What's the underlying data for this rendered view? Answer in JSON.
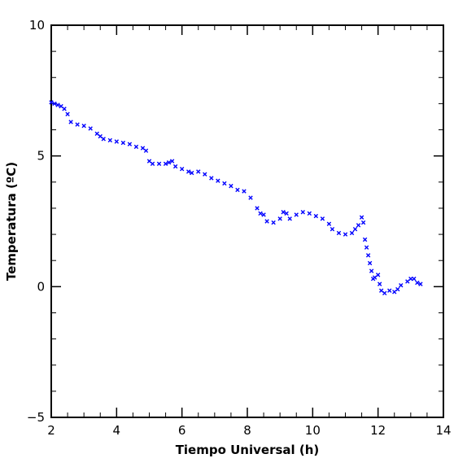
{
  "chart_data": {
    "type": "scatter",
    "xlabel": "Tiempo Universal (h)",
    "ylabel": "Temperatura (ºC)",
    "xlim": [
      2,
      14
    ],
    "ylim": [
      -5,
      10
    ],
    "x_ticks": [
      2,
      4,
      6,
      8,
      10,
      12,
      14
    ],
    "x_tick_labels": [
      "2",
      "4",
      "6",
      "8",
      "10",
      "12",
      "14"
    ],
    "y_ticks": [
      -5,
      0,
      5,
      10
    ],
    "y_tick_labels": [
      "−5",
      "0",
      "5",
      "10"
    ],
    "marker": "x",
    "colors": {
      "series": "#0000ff",
      "axes": "#000000"
    },
    "grid": false,
    "legend": "none",
    "series": [
      {
        "points": [
          [
            2.0,
            7.05
          ],
          [
            2.1,
            7.0
          ],
          [
            2.2,
            6.95
          ],
          [
            2.3,
            6.9
          ],
          [
            2.4,
            6.8
          ],
          [
            2.5,
            6.6
          ],
          [
            2.6,
            6.3
          ],
          [
            2.8,
            6.2
          ],
          [
            3.0,
            6.15
          ],
          [
            3.2,
            6.05
          ],
          [
            3.4,
            5.85
          ],
          [
            3.5,
            5.75
          ],
          [
            3.6,
            5.65
          ],
          [
            3.8,
            5.6
          ],
          [
            4.0,
            5.55
          ],
          [
            4.2,
            5.5
          ],
          [
            4.4,
            5.45
          ],
          [
            4.6,
            5.35
          ],
          [
            4.8,
            5.3
          ],
          [
            4.9,
            5.2
          ],
          [
            5.0,
            4.8
          ],
          [
            5.1,
            4.7
          ],
          [
            5.3,
            4.7
          ],
          [
            5.5,
            4.7
          ],
          [
            5.6,
            4.75
          ],
          [
            5.7,
            4.8
          ],
          [
            5.8,
            4.6
          ],
          [
            6.0,
            4.5
          ],
          [
            6.2,
            4.4
          ],
          [
            6.3,
            4.35
          ],
          [
            6.5,
            4.4
          ],
          [
            6.7,
            4.3
          ],
          [
            6.9,
            4.15
          ],
          [
            7.1,
            4.05
          ],
          [
            7.3,
            3.95
          ],
          [
            7.5,
            3.85
          ],
          [
            7.7,
            3.7
          ],
          [
            7.9,
            3.65
          ],
          [
            8.1,
            3.4
          ],
          [
            8.3,
            3.0
          ],
          [
            8.4,
            2.8
          ],
          [
            8.5,
            2.75
          ],
          [
            8.6,
            2.5
          ],
          [
            8.8,
            2.45
          ],
          [
            9.0,
            2.6
          ],
          [
            9.1,
            2.85
          ],
          [
            9.2,
            2.8
          ],
          [
            9.3,
            2.6
          ],
          [
            9.5,
            2.75
          ],
          [
            9.7,
            2.85
          ],
          [
            9.9,
            2.8
          ],
          [
            10.1,
            2.7
          ],
          [
            10.3,
            2.6
          ],
          [
            10.5,
            2.4
          ],
          [
            10.6,
            2.2
          ],
          [
            10.8,
            2.05
          ],
          [
            11.0,
            2.0
          ],
          [
            11.2,
            2.05
          ],
          [
            11.3,
            2.2
          ],
          [
            11.4,
            2.35
          ],
          [
            11.5,
            2.65
          ],
          [
            11.55,
            2.45
          ],
          [
            11.6,
            1.8
          ],
          [
            11.65,
            1.5
          ],
          [
            11.7,
            1.2
          ],
          [
            11.75,
            0.9
          ],
          [
            11.8,
            0.6
          ],
          [
            11.85,
            0.3
          ],
          [
            11.9,
            0.35
          ],
          [
            12.0,
            0.45
          ],
          [
            12.05,
            0.1
          ],
          [
            12.1,
            -0.15
          ],
          [
            12.2,
            -0.25
          ],
          [
            12.35,
            -0.15
          ],
          [
            12.5,
            -0.2
          ],
          [
            12.6,
            -0.1
          ],
          [
            12.7,
            0.05
          ],
          [
            12.9,
            0.2
          ],
          [
            13.0,
            0.3
          ],
          [
            13.1,
            0.3
          ],
          [
            13.2,
            0.15
          ],
          [
            13.3,
            0.1
          ]
        ]
      }
    ]
  }
}
